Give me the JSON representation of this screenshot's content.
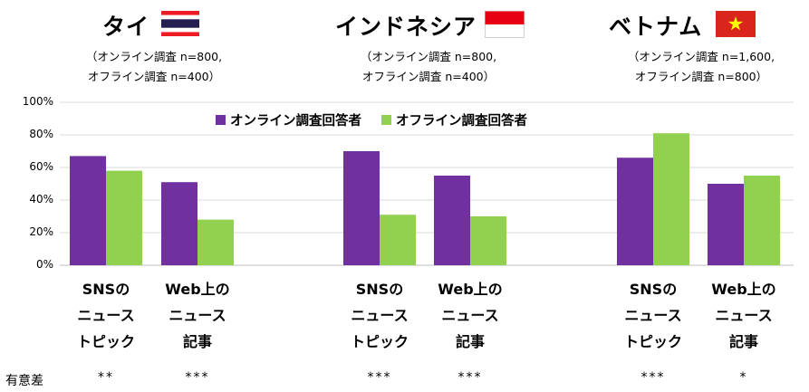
{
  "countries": [
    {
      "name": "タイ",
      "sample_line1": "（オンライン調査 n=800,",
      "sample_line2": "オフライン調査 n=400）",
      "flag": "thailand-flag"
    },
    {
      "name": "インドネシア",
      "sample_line1": "（オンライン調査 n=800,",
      "sample_line2": "オフライン調査 n=400）",
      "flag": "indonesia-flag"
    },
    {
      "name": "ベトナム",
      "sample_line1": "（オンライン調査 n=1,600,",
      "sample_line2": "オフライン調査 n=800）",
      "flag": "vietnam-flag"
    }
  ],
  "significance_label": "有意差",
  "chart_data": {
    "type": "bar",
    "ylim": [
      0,
      100
    ],
    "yticks": [
      "0%",
      "20%",
      "40%",
      "60%",
      "80%",
      "100%"
    ],
    "legend": [
      "オンライン調査回答者",
      "オフライン調査回答者"
    ],
    "colors": {
      "online": "#7030A0",
      "offline": "#92D050"
    },
    "groups": [
      {
        "country": "タイ",
        "category_lines": [
          "SNSの",
          "ニュース",
          "トピック"
        ],
        "online": 67,
        "offline": 58,
        "significance": "**"
      },
      {
        "country": "タイ",
        "category_lines": [
          "Web上の",
          "ニュース",
          "記事"
        ],
        "online": 51,
        "offline": 28,
        "significance": "***"
      },
      {
        "country": "インドネシア",
        "category_lines": [
          "SNSの",
          "ニュース",
          "トピック"
        ],
        "online": 70,
        "offline": 31,
        "significance": "***"
      },
      {
        "country": "インドネシア",
        "category_lines": [
          "Web上の",
          "ニュース",
          "記事"
        ],
        "online": 55,
        "offline": 30,
        "significance": "***"
      },
      {
        "country": "ベトナム",
        "category_lines": [
          "SNSの",
          "ニュース",
          "トピック"
        ],
        "online": 66,
        "offline": 81,
        "significance": "***"
      },
      {
        "country": "ベトナム",
        "category_lines": [
          "Web上の",
          "ニュース",
          "記事"
        ],
        "online": 50,
        "offline": 55,
        "significance": "*"
      }
    ]
  }
}
